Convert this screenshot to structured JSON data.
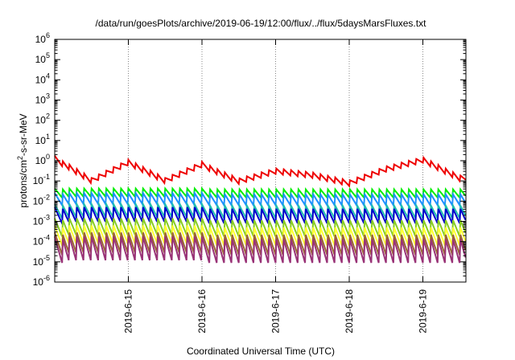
{
  "chart_data": {
    "type": "line",
    "title": "/data/run/goesPlots/archive/2019-06-19/12:00/flux/../flux/5daysMarsFluxes.txt",
    "xlabel": "Coordinated Universal Time (UTC)",
    "ylabel_parts": [
      "protons/cm",
      "2",
      "-s-sr-MeV"
    ],
    "y_scale": "log",
    "ylim_exponents": [
      -6,
      6
    ],
    "y_tick_base": "10",
    "y_tick_exponents": [
      -6,
      -5,
      -4,
      -3,
      -2,
      -1,
      0,
      1,
      2,
      3,
      4,
      5,
      6
    ],
    "x_range_days": [
      "2019-06-14 00:00",
      "2019-06-19 12:00"
    ],
    "x_ticks": [
      {
        "label": "2019-6-15",
        "day": 1
      },
      {
        "label": "2019-6-16",
        "day": 2
      },
      {
        "label": "2019-6-17",
        "day": 3
      },
      {
        "label": "2019-6-18",
        "day": 4
      },
      {
        "label": "2019-6-19",
        "day": 5
      }
    ],
    "grid": "x-dotted",
    "series": [
      {
        "color": "#ee0000",
        "x_days": [
          0,
          0.5,
          1.0,
          1.5,
          2.0,
          2.5,
          3.0,
          3.5,
          4.0,
          4.5,
          5.0,
          5.5
        ],
        "y_log10": [
          0.1,
          -1.0,
          -0.1,
          -1.0,
          -0.2,
          -1.0,
          -0.5,
          -0.7,
          -1.1,
          -0.4,
          0.05,
          -0.85
        ],
        "sawtooth_period_days": 0.1,
        "sawtooth_amp_log10": 0.3
      },
      {
        "color": "#00ee00",
        "base_log10": -1.6,
        "amp_log10": 0.45,
        "period_days": 0.1
      },
      {
        "color": "#1e90ff",
        "base_log10": -1.9,
        "amp_log10": 0.6,
        "period_days": 0.1
      },
      {
        "color": "#20c0b0",
        "base_log10": -2.5,
        "amp_log10": 0.7,
        "period_days": 0.1
      },
      {
        "color": "#0000cc",
        "base_log10": -2.7,
        "amp_log10": 0.8,
        "period_days": 0.1
      },
      {
        "color": "#88cc22",
        "base_log10": -3.3,
        "amp_log10": 0.9,
        "period_days": 0.1
      },
      {
        "color": "#ffff33",
        "base_log10": -3.7,
        "amp_log10": 1.0,
        "period_days": 0.1
      },
      {
        "color": "#996633",
        "base_log10": -4.1,
        "amp_log10": 1.1,
        "period_days": 0.1
      },
      {
        "color": "#993377",
        "base_log10": -4.4,
        "amp_log10": 1.3,
        "period_days": 0.1
      }
    ]
  }
}
